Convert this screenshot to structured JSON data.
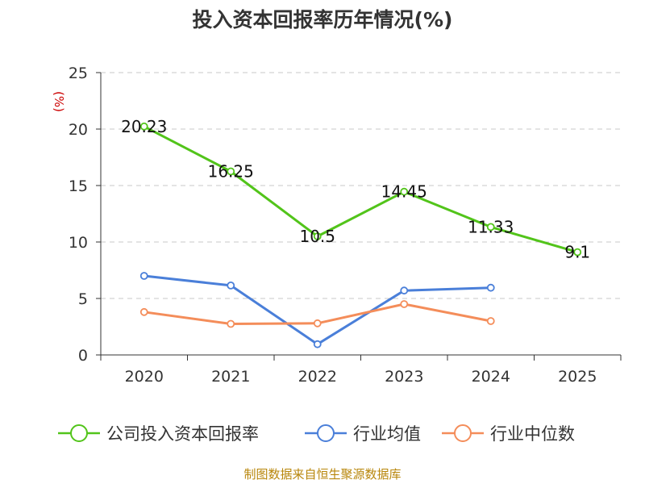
{
  "chart_data": {
    "type": "line",
    "title": "投入资本回报率历年情况(%)",
    "ylabel": "(%)",
    "categories": [
      "2020",
      "2021",
      "2022",
      "2023",
      "2024",
      "2025"
    ],
    "ylim": [
      0,
      25
    ],
    "yticks": [
      "0",
      "5",
      "10",
      "15",
      "20",
      "25"
    ],
    "grid": true,
    "legend_position": "bottom",
    "series": [
      {
        "name": "公司投入资本回报率",
        "color": "#52c41a",
        "values": [
          20.23,
          16.25,
          10.5,
          14.45,
          11.33,
          9.1
        ],
        "labels": [
          "20.23",
          "16.25",
          "10.5",
          "14.45",
          "11.33",
          "9.1"
        ]
      },
      {
        "name": "行业均值",
        "color": "#4a7fd9",
        "values": [
          7.0,
          6.15,
          0.95,
          5.7,
          5.95,
          null
        ],
        "labels": []
      },
      {
        "name": "行业中位数",
        "color": "#f48d5a",
        "values": [
          3.8,
          2.75,
          2.8,
          4.5,
          3.0,
          null
        ],
        "labels": []
      }
    ]
  },
  "source": "制图数据来自恒生聚源数据库"
}
